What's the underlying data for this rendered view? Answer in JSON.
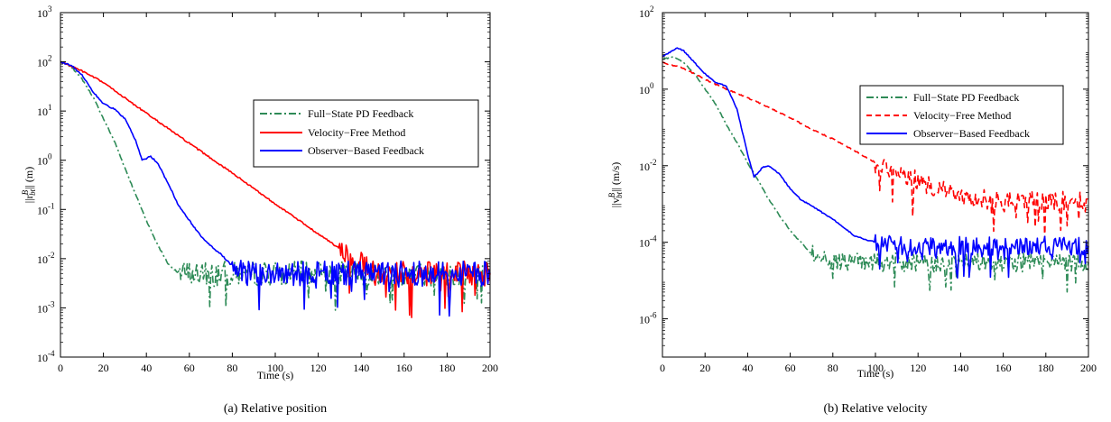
{
  "chart_data": [
    {
      "type": "line",
      "caption": "(a) Relative position",
      "xlabel": "Time (s)",
      "ylabel": "||r",
      "ylabel_sup": "B",
      "ylabel_sub": "bt",
      "ylabel_tail": "|| (m)",
      "xlim": [
        0,
        200
      ],
      "ylim": [
        0.0001,
        1000
      ],
      "yscale": "log",
      "grid": false,
      "legend_position": "top-right",
      "x_ticks": [
        "0",
        "20",
        "40",
        "60",
        "80",
        "100",
        "120",
        "140",
        "160",
        "180",
        "200"
      ],
      "y_ticks": [
        {
          "base": "10",
          "exp": "-4"
        },
        {
          "base": "10",
          "exp": "-3"
        },
        {
          "base": "10",
          "exp": "-2"
        },
        {
          "base": "10",
          "exp": "-1"
        },
        {
          "base": "10",
          "exp": "0"
        },
        {
          "base": "10",
          "exp": "1"
        },
        {
          "base": "10",
          "exp": "2"
        },
        {
          "base": "10",
          "exp": "3"
        }
      ],
      "series": [
        {
          "name": "Full−State PD Feedback",
          "color": "#2e8b57",
          "style": "dashdot",
          "x": [
            0,
            5,
            10,
            15,
            20,
            25,
            30,
            35,
            40,
            45,
            50,
            55,
            60,
            65,
            70,
            75,
            80,
            90,
            100,
            120,
            140,
            160,
            180,
            200
          ],
          "y": [
            100,
            80,
            45,
            20,
            7,
            2.5,
            0.7,
            0.2,
            0.06,
            0.02,
            0.008,
            0.005,
            0.005,
            0.005,
            0.005,
            0.005,
            0.005,
            0.005,
            0.005,
            0.005,
            0.005,
            0.005,
            0.005,
            0.005
          ],
          "noise_from_x": 55
        },
        {
          "name": "Velocity−Free Method",
          "color": "#ff0000",
          "style": "solid",
          "x": [
            0,
            5,
            10,
            20,
            40,
            60,
            80,
            100,
            120,
            140,
            150,
            160,
            180,
            200
          ],
          "y": [
            100,
            82,
            65,
            38,
            9,
            2.2,
            0.55,
            0.13,
            0.032,
            0.008,
            0.005,
            0.005,
            0.005,
            0.005
          ],
          "noise_from_x": 130
        },
        {
          "name": "Observer−Based Feedback",
          "color": "#0000ff",
          "style": "solid",
          "x": [
            0,
            5,
            10,
            15,
            20,
            25,
            30,
            35,
            38,
            42,
            45,
            50,
            55,
            60,
            65,
            70,
            75,
            80,
            85,
            90,
            100,
            120,
            140,
            160,
            180,
            200
          ],
          "y": [
            100,
            85,
            55,
            25,
            14,
            11,
            7,
            2.5,
            1.0,
            1.2,
            0.9,
            0.35,
            0.12,
            0.06,
            0.03,
            0.018,
            0.012,
            0.007,
            0.005,
            0.005,
            0.005,
            0.005,
            0.005,
            0.005,
            0.005,
            0.005
          ],
          "noise_from_x": 80
        }
      ]
    },
    {
      "type": "line",
      "caption": "(b) Relative velocity",
      "xlabel": "Time (s)",
      "ylabel": "||v",
      "ylabel_sup": "B",
      "ylabel_sub": "bt",
      "ylabel_tail": "|| (m/s)",
      "xlim": [
        0,
        200
      ],
      "ylim": [
        1e-07,
        100
      ],
      "yscale": "log",
      "grid": false,
      "legend_position": "top-right",
      "x_ticks": [
        "0",
        "20",
        "40",
        "60",
        "80",
        "100",
        "120",
        "140",
        "160",
        "180",
        "200"
      ],
      "y_ticks": [
        {
          "base": "10",
          "exp": "-6"
        },
        {
          "base": "10",
          "exp": "-4"
        },
        {
          "base": "10",
          "exp": "-2"
        },
        {
          "base": "10",
          "exp": "0"
        },
        {
          "base": "10",
          "exp": "2"
        }
      ],
      "series": [
        {
          "name": "Full−State PD Feedback",
          "color": "#2e8b57",
          "style": "dashdot",
          "x": [
            0,
            5,
            10,
            15,
            20,
            25,
            30,
            35,
            40,
            45,
            50,
            55,
            60,
            65,
            70,
            75,
            80,
            100,
            120,
            140,
            160,
            180,
            200
          ],
          "y": [
            6,
            7,
            5,
            2.5,
            1.0,
            0.4,
            0.12,
            0.04,
            0.012,
            0.004,
            0.0013,
            0.0005,
            0.0002,
            0.0001,
            5e-05,
            4e-05,
            3e-05,
            3e-05,
            3e-05,
            3e-05,
            3e-05,
            3e-05,
            3e-05
          ],
          "noise_from_x": 70
        },
        {
          "name": "Velocity−Free Method",
          "color": "#ff0000",
          "style": "dashed",
          "x": [
            0,
            10,
            20,
            30,
            40,
            50,
            60,
            70,
            80,
            90,
            100,
            110,
            120,
            130,
            140,
            160,
            180,
            200
          ],
          "y": [
            5,
            3.5,
            1.8,
            1.0,
            0.6,
            0.33,
            0.18,
            0.09,
            0.05,
            0.025,
            0.012,
            0.007,
            0.004,
            0.0025,
            0.0015,
            0.0012,
            0.0012,
            0.0012
          ],
          "noise_from_x": 100
        },
        {
          "name": "Observer−Based Feedback",
          "color": "#0000ff",
          "style": "solid",
          "x": [
            0,
            3,
            7,
            10,
            15,
            20,
            25,
            30,
            35,
            40,
            43,
            47,
            50,
            55,
            60,
            65,
            70,
            75,
            80,
            85,
            90,
            95,
            100,
            110,
            120,
            140,
            160,
            180,
            200
          ],
          "y": [
            7,
            9,
            12,
            10,
            5,
            2.5,
            1.5,
            1.2,
            0.3,
            0.02,
            0.005,
            0.009,
            0.01,
            0.006,
            0.0025,
            0.0013,
            0.0009,
            0.0006,
            0.0004,
            0.00025,
            0.00015,
            0.00012,
            0.0001,
            8e-05,
            8e-05,
            8e-05,
            8e-05,
            8e-05,
            8e-05
          ],
          "noise_from_x": 100
        }
      ]
    }
  ]
}
